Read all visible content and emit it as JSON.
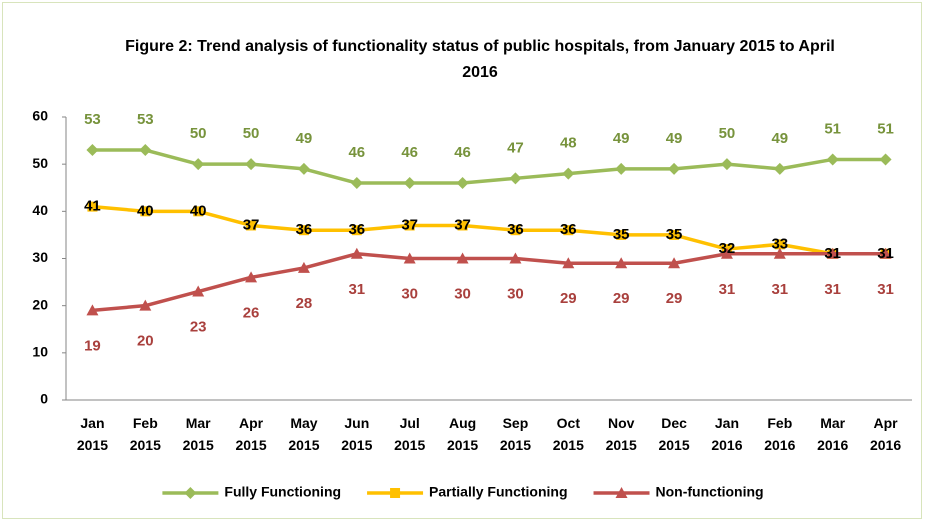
{
  "chart_data": {
    "type": "line",
    "title": "Figure 2: Trend analysis of functionality status of public hospitals, from January 2015 to April 2016",
    "categories": [
      "Jan 2015",
      "Feb 2015",
      "Mar 2015",
      "Apr 2015",
      "May 2015",
      "Jun 2015",
      "Jul 2015",
      "Aug 2015",
      "Sep 2015",
      "Oct 2015",
      "Nov 2015",
      "Dec 2015",
      "Jan 2016",
      "Feb 2016",
      "Mar 2016",
      "Apr 2016"
    ],
    "series": [
      {
        "name": "Fully Functioning",
        "color": "#9bbb59",
        "marker": "diamond",
        "label_position": "above",
        "label_color": "#77933c",
        "values": [
          53,
          53,
          50,
          50,
          49,
          46,
          46,
          46,
          47,
          48,
          49,
          49,
          50,
          49,
          51,
          51
        ]
      },
      {
        "name": "Partially Functioning",
        "color": "#ffc000",
        "marker": "square",
        "label_position": "center",
        "label_color": "#000000",
        "values": [
          41,
          40,
          40,
          37,
          36,
          36,
          37,
          37,
          36,
          36,
          35,
          35,
          32,
          33,
          31,
          31
        ]
      },
      {
        "name": "Non-functioning",
        "color": "#c0504d",
        "marker": "triangle",
        "label_position": "below",
        "label_color": "#a9403d",
        "values": [
          19,
          20,
          23,
          26,
          28,
          31,
          30,
          30,
          30,
          29,
          29,
          29,
          31,
          31,
          31,
          31
        ]
      }
    ],
    "ylim": [
      0,
      60
    ],
    "yticks": [
      0,
      10,
      20,
      30,
      40,
      50,
      60
    ],
    "grid": false,
    "legend": "bottom"
  }
}
